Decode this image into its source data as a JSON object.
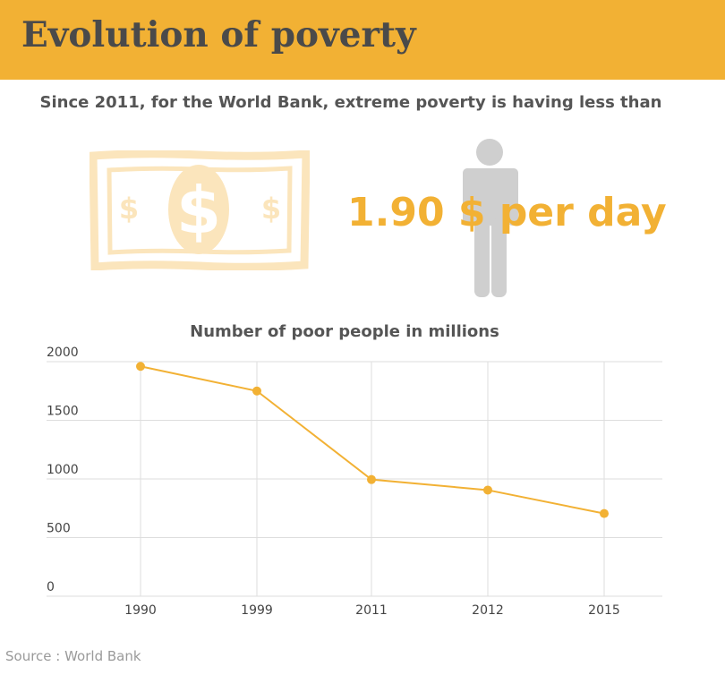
{
  "header": {
    "title": "Evolution of poverty"
  },
  "subtitle": "Since 2011, for the World Bank, extreme poverty is having less than",
  "illustration": {
    "money_icon": "dollar-banknote-icon",
    "person_icon": "person-silhouette-icon",
    "amount": "1.90 $ per day"
  },
  "colors": {
    "accent": "#f2b134",
    "banknote": "#fbe5bc",
    "person": "#cfcfcf",
    "grid": "#dddddd"
  },
  "chart_data": {
    "type": "line",
    "title": "Number of poor people in millions",
    "categories": [
      "1990",
      "1999",
      "2011",
      "2012",
      "2015"
    ],
    "values": [
      1960,
      1750,
      995,
      905,
      705
    ],
    "yticks": [
      0,
      500,
      1000,
      1500,
      2000
    ],
    "ylim": [
      0,
      2000
    ],
    "grid": true,
    "legend": "none"
  },
  "source": "Source : World Bank"
}
